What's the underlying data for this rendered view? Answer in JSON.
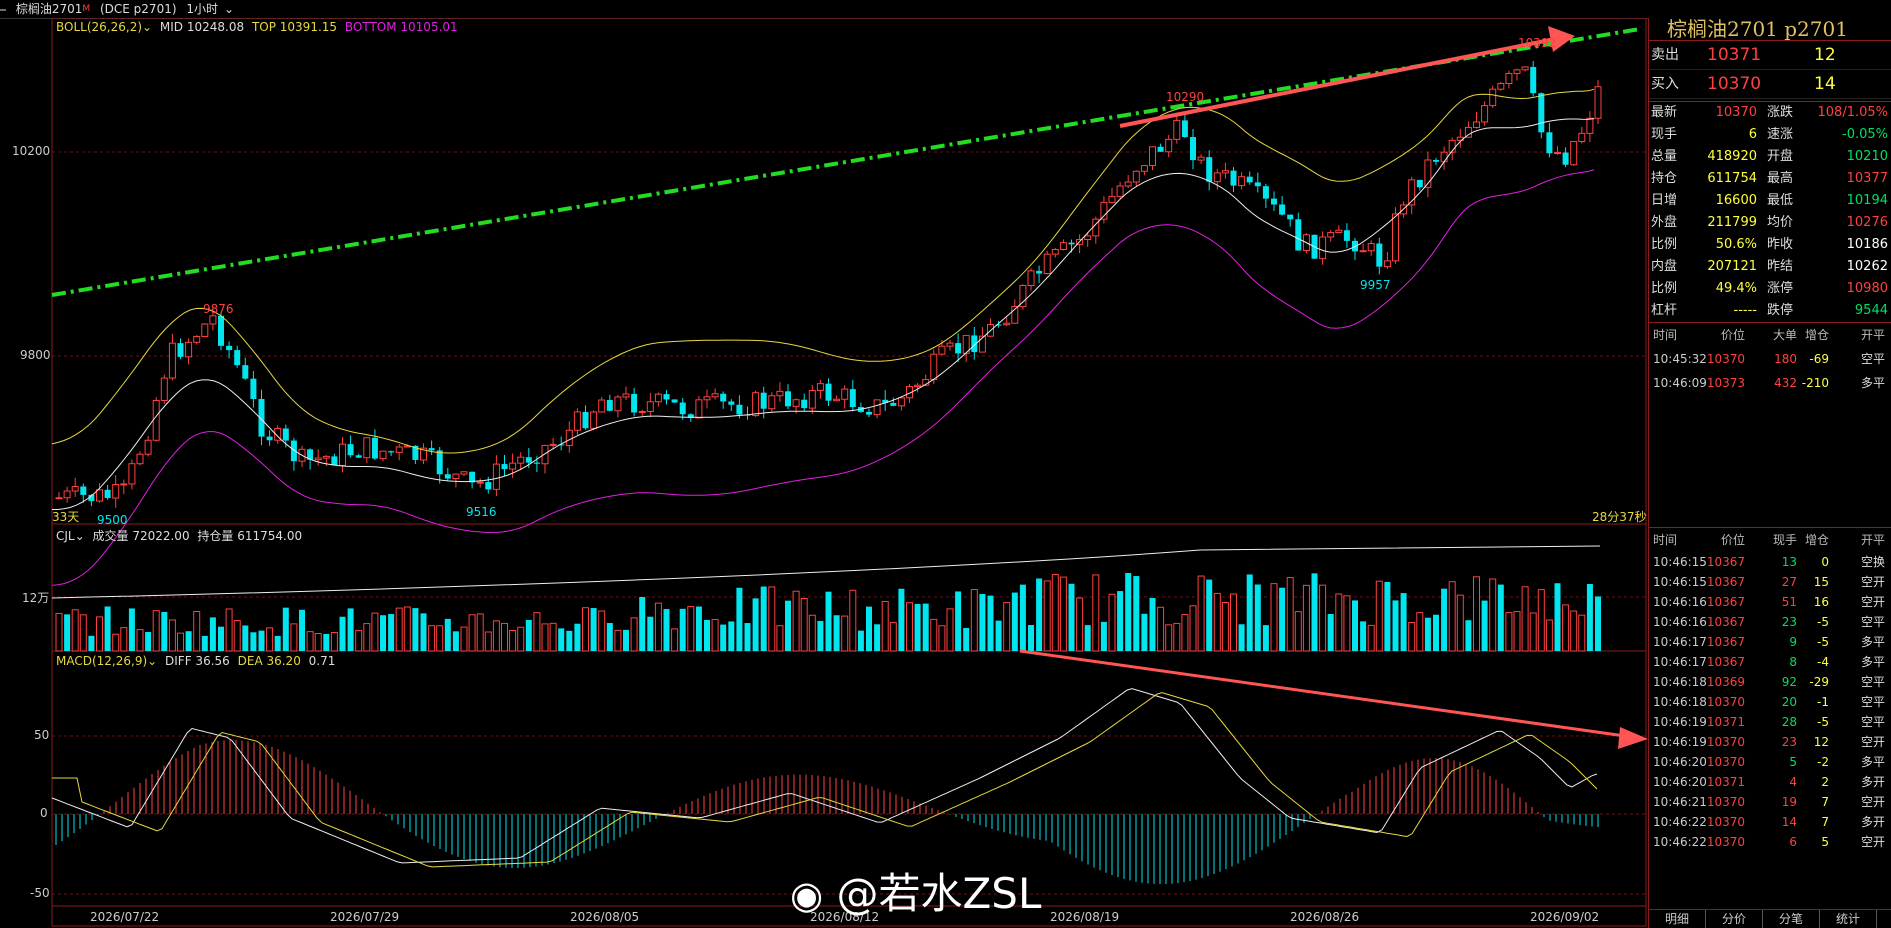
{
  "topbar": {
    "icon": "menu-icon",
    "instrument": "棕榈油2701",
    "marker": "M",
    "code": "(DCE p2701)",
    "period": "1小时"
  },
  "main_chart": {
    "boll_label": "BOLL(26,26,2)",
    "mid": "MID 10248.08",
    "top": "TOP 10391.15",
    "bottom": "BOTTOM 10105.01",
    "y_ticks": [
      "10200",
      "9800"
    ],
    "annotations": [
      "9876",
      "9500",
      "9516",
      "10290",
      "9957",
      "10392"
    ],
    "left_corner": "33天",
    "countdown": "28分37秒"
  },
  "volume_panel": {
    "label": "CJL",
    "volume": "成交量 72022.00",
    "oi": "持仓量 611754.00",
    "y_tick": "12万"
  },
  "macd_panel": {
    "label": "MACD(12,26,9)",
    "diff": "DIFF 36.56",
    "dea": "DEA 36.20",
    "macd": "0.71",
    "y_ticks": [
      "50",
      "0",
      "-50"
    ]
  },
  "x_labels": [
    "2026/07/22",
    "2026/07/29",
    "2026/08/05",
    "2026/08/12",
    "2026/08/19",
    "2026/08/26",
    "2026/09/02"
  ],
  "quote": {
    "title": "棕榈油2701  p2701",
    "sell_label": "卖出",
    "sell_price": "10371",
    "sell_vol": "12",
    "buy_label": "买入",
    "buy_price": "10370",
    "buy_vol": "14"
  },
  "stats": [
    [
      "最新",
      "10370",
      "涨跌",
      "108/1.05%"
    ],
    [
      "现手",
      "6",
      "速涨",
      "-0.05%"
    ],
    [
      "总量",
      "418920",
      "开盘",
      "10210"
    ],
    [
      "持仓",
      "611754",
      "最高",
      "10377"
    ],
    [
      "日增",
      "16600",
      "最低",
      "10194"
    ],
    [
      "外盘",
      "211799",
      "均价",
      "10276"
    ],
    [
      "比例",
      "50.6%",
      "昨收",
      "10186"
    ],
    [
      "内盘",
      "207121",
      "昨结",
      "10262"
    ],
    [
      "比例",
      "49.4%",
      "涨停",
      "10980"
    ],
    [
      "杠杆",
      "-----",
      "跌停",
      "9544"
    ]
  ],
  "big_orders": {
    "headers": [
      "时间",
      "价位",
      "大单",
      "增仓",
      "开平"
    ],
    "rows": [
      [
        "10:45:32",
        "10370",
        "180",
        "-69",
        "空平"
      ],
      [
        "10:46:09",
        "10373",
        "432",
        "-210",
        "多平"
      ]
    ]
  },
  "ticks": {
    "headers": [
      "时间",
      "价位",
      "现手",
      "增仓",
      "开平"
    ],
    "rows": [
      [
        "10:46:15",
        "10367",
        "13",
        "0",
        "空换"
      ],
      [
        "10:46:15",
        "10367",
        "27",
        "15",
        "空开"
      ],
      [
        "10:46:16",
        "10367",
        "51",
        "16",
        "空开"
      ],
      [
        "10:46:16",
        "10367",
        "23",
        "-5",
        "空平"
      ],
      [
        "10:46:17",
        "10367",
        "9",
        "-5",
        "多平"
      ],
      [
        "10:46:17",
        "10367",
        "8",
        "-4",
        "多平"
      ],
      [
        "10:46:18",
        "10369",
        "92",
        "-29",
        "空平"
      ],
      [
        "10:46:18",
        "10370",
        "20",
        "-1",
        "空平"
      ],
      [
        "10:46:19",
        "10371",
        "28",
        "-5",
        "空平"
      ],
      [
        "10:46:19",
        "10370",
        "23",
        "12",
        "空开"
      ],
      [
        "10:46:20",
        "10370",
        "5",
        "-2",
        "多平"
      ],
      [
        "10:46:20",
        "10371",
        "4",
        "2",
        "多开"
      ],
      [
        "10:46:21",
        "10370",
        "19",
        "7",
        "空开"
      ],
      [
        "10:46:22",
        "10370",
        "14",
        "7",
        "多开"
      ],
      [
        "10:46:22",
        "10370",
        "6",
        "5",
        "空开"
      ]
    ]
  },
  "tabs": [
    "明细",
    "分价",
    "分笔",
    "统计"
  ],
  "watermark": "@若水ZSL",
  "colors": {
    "up": "#ff4040",
    "down": "#00e5ee",
    "green_line": "#22dd22",
    "arrow": "#ff5555",
    "yellow": "#e6d840",
    "magenta": "#e020e0"
  }
}
